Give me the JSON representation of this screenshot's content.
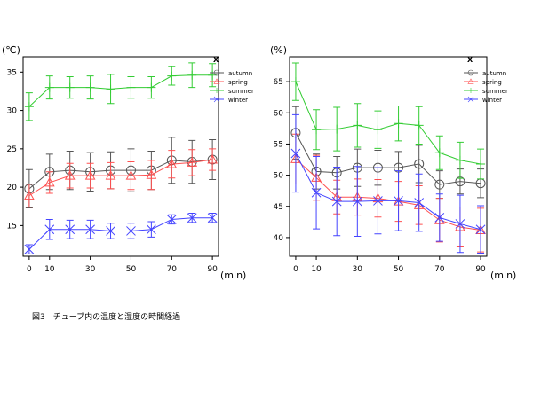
{
  "caption": "図3　チューブ内の温度と湿度の時間経過",
  "colors": {
    "autumn": "#555555",
    "spring": "#ff5050",
    "summer": "#33cc33",
    "winter": "#4444ff"
  },
  "chart_data": [
    {
      "type": "line",
      "unit_label": "(℃)",
      "xlabel": "(min)",
      "x": [
        0,
        10,
        20,
        30,
        40,
        50,
        60,
        70,
        80,
        90
      ],
      "xticks": [
        0,
        10,
        30,
        50,
        70,
        90
      ],
      "yticks": [
        15,
        20,
        25,
        30,
        35
      ],
      "xlim": [
        -3,
        93
      ],
      "ylim": [
        11,
        37
      ],
      "legend_title": "X",
      "legend_position": "top-right",
      "error_bars": true,
      "series": [
        {
          "name": "autumn",
          "marker": "circle",
          "values": [
            19.8,
            22.0,
            22.2,
            22.0,
            22.2,
            22.2,
            22.2,
            23.5,
            23.3,
            23.6
          ],
          "err": [
            2.5,
            2.3,
            2.5,
            2.5,
            2.4,
            2.8,
            2.5,
            3.0,
            2.8,
            2.6
          ]
        },
        {
          "name": "spring",
          "marker": "triangle",
          "values": [
            18.9,
            20.6,
            21.5,
            21.5,
            21.5,
            21.5,
            21.6,
            23.0,
            23.2,
            23.6
          ],
          "err": [
            1.5,
            1.4,
            1.6,
            1.6,
            1.7,
            1.8,
            1.9,
            1.8,
            1.7,
            1.4
          ]
        },
        {
          "name": "summer",
          "marker": "plus",
          "values": [
            30.5,
            33.0,
            33.0,
            33.0,
            32.8,
            33.0,
            33.0,
            34.5,
            34.6,
            34.6
          ],
          "err": [
            1.8,
            1.5,
            1.4,
            1.5,
            1.9,
            1.4,
            1.4,
            1.2,
            1.6,
            1.5
          ]
        },
        {
          "name": "winter",
          "marker": "x",
          "values": [
            11.9,
            14.5,
            14.5,
            14.5,
            14.3,
            14.3,
            14.5,
            15.8,
            16.0,
            16.0
          ],
          "err": [
            0.6,
            1.3,
            1.2,
            1.2,
            1.0,
            1.0,
            1.0,
            0.6,
            0.6,
            0.6
          ]
        }
      ]
    },
    {
      "type": "line",
      "unit_label": "(%)",
      "xlabel": "(min)",
      "x": [
        0,
        10,
        20,
        30,
        40,
        50,
        60,
        70,
        80,
        90
      ],
      "xticks": [
        0,
        10,
        30,
        50,
        70,
        90
      ],
      "yticks": [
        40,
        45,
        50,
        55,
        60,
        65
      ],
      "xlim": [
        -3,
        93
      ],
      "ylim": [
        37,
        69
      ],
      "legend_title": "X",
      "legend_position": "top-right",
      "error_bars": true,
      "series": [
        {
          "name": "autumn",
          "marker": "circle",
          "values": [
            56.8,
            50.6,
            50.4,
            51.2,
            51.2,
            51.2,
            51.8,
            48.5,
            49.0,
            48.7
          ],
          "err": [
            4.2,
            2.8,
            2.6,
            3.0,
            2.8,
            2.6,
            3.0,
            2.2,
            2.0,
            2.3
          ]
        },
        {
          "name": "spring",
          "marker": "triangle",
          "values": [
            52.6,
            49.6,
            46.5,
            46.5,
            46.3,
            45.8,
            45.2,
            42.8,
            41.7,
            41.2
          ],
          "err": [
            4.0,
            3.6,
            2.7,
            2.9,
            3.0,
            3.2,
            3.1,
            3.5,
            3.2,
            3.5
          ]
        },
        {
          "name": "summer",
          "marker": "plus",
          "values": [
            65.0,
            57.3,
            57.4,
            58.0,
            57.3,
            58.3,
            58.0,
            53.6,
            52.4,
            51.8
          ],
          "err": [
            3.0,
            3.2,
            3.5,
            3.5,
            3.0,
            2.8,
            3.0,
            2.7,
            2.9,
            2.4
          ]
        },
        {
          "name": "winter",
          "marker": "x",
          "values": [
            53.5,
            47.2,
            45.8,
            45.8,
            45.9,
            45.9,
            45.6,
            43.2,
            42.2,
            41.3
          ],
          "err": [
            6.2,
            5.8,
            5.5,
            5.6,
            5.3,
            4.8,
            4.6,
            3.8,
            4.6,
            3.8
          ]
        }
      ]
    }
  ]
}
